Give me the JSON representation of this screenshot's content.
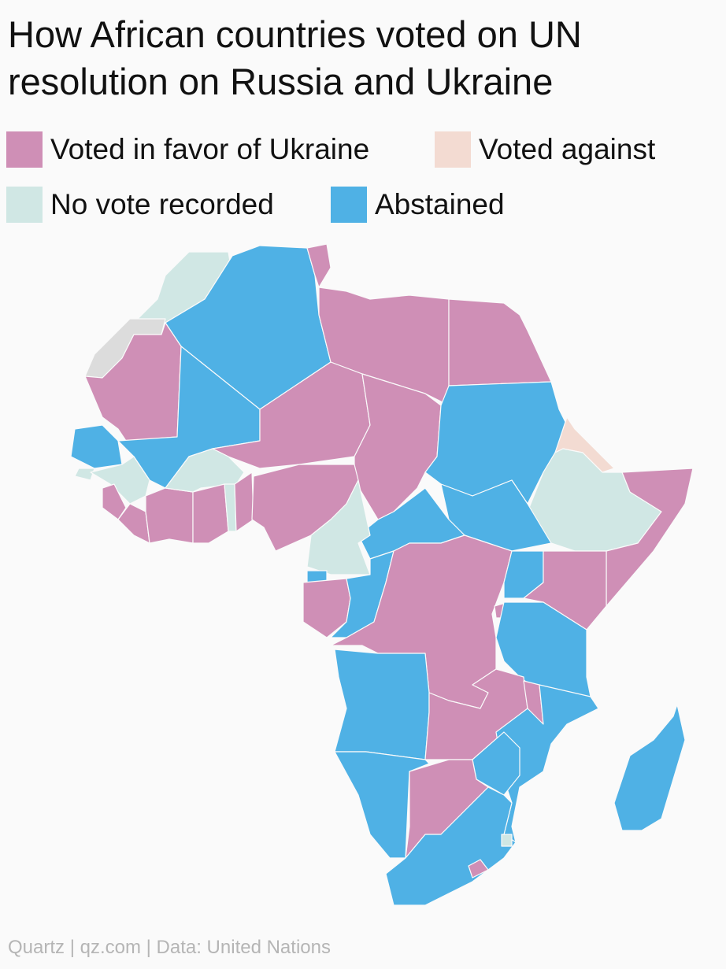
{
  "title": "How African countries voted on UN resolution on Russia and Ukraine",
  "legend": [
    {
      "label": "Voted in favor of Ukraine",
      "color": "#cf8fb6"
    },
    {
      "label": "Voted against",
      "color": "#f3dbd2"
    },
    {
      "label": "No vote recorded",
      "color": "#d0e7e4"
    },
    {
      "label": "Abstained",
      "color": "#4fb1e5"
    }
  ],
  "source": "Quartz | qz.com | Data: United Nations"
}
